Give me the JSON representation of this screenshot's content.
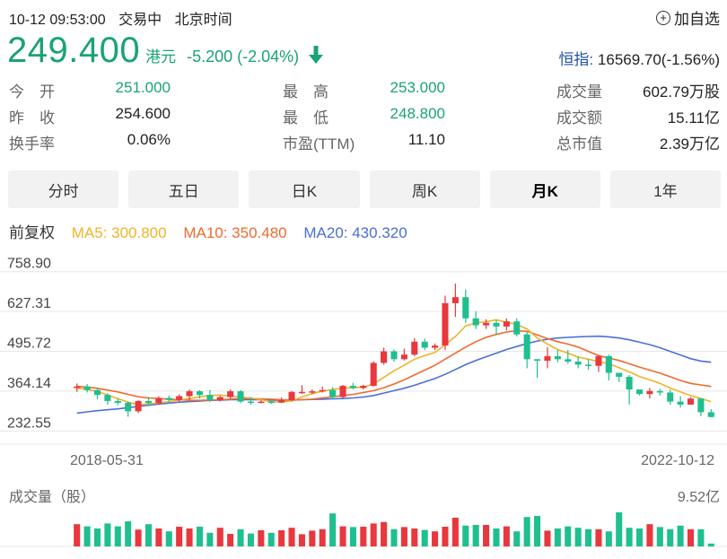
{
  "header": {
    "datetime": "10-12 09:53:00",
    "status": "交易中",
    "timezone": "北京时间",
    "add_label": "加自选"
  },
  "quote": {
    "price": "249.400",
    "currency": "港元",
    "change": "-5.200 (-2.04%)",
    "index_label": "恒指:",
    "index_value": "16569.70(-1.56%)"
  },
  "stats": {
    "open_label": "今　开",
    "open": "251.000",
    "prev_label": "昨　收",
    "prev": "254.600",
    "turnover_rate_label": "换手率",
    "turnover_rate": "0.06%",
    "high_label": "最　高",
    "high": "253.000",
    "low_label": "最　低",
    "low": "248.800",
    "pe_label": "市盈(TTM)",
    "pe": "11.10",
    "volume_label": "成交量",
    "volume": "602.79万股",
    "amount_label": "成交额",
    "amount": "15.11亿",
    "mcap_label": "总市值",
    "mcap": "2.39万亿"
  },
  "tabs": [
    "分时",
    "五日",
    "日K",
    "周K",
    "月K",
    "1年"
  ],
  "active_tab": 4,
  "ma": {
    "adjust_label": "前复权",
    "ma5": "MA5: 300.800",
    "ma10": "MA10: 350.480",
    "ma20": "MA20: 430.320"
  },
  "colors": {
    "up": "#e8383d",
    "down": "#1fbf8f",
    "ma5": "#f0b32a",
    "ma10": "#ef6a2f",
    "ma20": "#4b6fd6",
    "accent_green": "#1aa374"
  },
  "chart_data": {
    "type": "candlestick",
    "y_ticks": [
      "758.90",
      "627.31",
      "495.72",
      "364.14",
      "232.55"
    ],
    "ylim": [
      195,
      770
    ],
    "x_start_label": "2018-05-31",
    "x_end_label": "2022-10-12",
    "candles": [
      [
        345,
        350,
        332,
        360
      ],
      [
        350,
        338,
        330,
        358
      ],
      [
        338,
        322,
        308,
        343
      ],
      [
        322,
        302,
        290,
        328
      ],
      [
        302,
        296,
        288,
        310
      ],
      [
        296,
        268,
        250,
        300
      ],
      [
        268,
        302,
        262,
        305
      ],
      [
        302,
        295,
        285,
        315
      ],
      [
        295,
        312,
        290,
        318
      ],
      [
        312,
        305,
        300,
        320
      ],
      [
        305,
        318,
        300,
        324
      ],
      [
        318,
        334,
        305,
        340
      ],
      [
        334,
        322,
        310,
        338
      ],
      [
        322,
        305,
        298,
        338
      ],
      [
        305,
        315,
        300,
        320
      ],
      [
        315,
        334,
        310,
        340
      ],
      [
        334,
        300,
        295,
        338
      ],
      [
        300,
        296,
        290,
        315
      ],
      [
        296,
        300,
        294,
        304
      ],
      [
        300,
        297,
        292,
        302
      ],
      [
        297,
        304,
        295,
        314
      ],
      [
        304,
        332,
        300,
        335
      ],
      [
        332,
        332,
        326,
        354
      ],
      [
        332,
        334,
        325,
        340
      ],
      [
        334,
        338,
        330,
        350
      ],
      [
        338,
        315,
        310,
        348
      ],
      [
        315,
        352,
        312,
        355
      ],
      [
        352,
        345,
        340,
        362
      ],
      [
        345,
        352,
        340,
        356
      ],
      [
        352,
        428,
        350,
        433
      ],
      [
        428,
        466,
        422,
        478
      ],
      [
        466,
        440,
        432,
        472
      ],
      [
        440,
        455,
        436,
        475
      ],
      [
        455,
        498,
        450,
        510
      ],
      [
        498,
        478,
        470,
        508
      ],
      [
        478,
        485,
        470,
        492
      ],
      [
        485,
        625,
        470,
        650
      ],
      [
        625,
        645,
        580,
        690
      ],
      [
        645,
        575,
        560,
        670
      ],
      [
        575,
        552,
        540,
        598
      ],
      [
        552,
        560,
        540,
        572
      ],
      [
        560,
        548,
        522,
        570
      ],
      [
        548,
        565,
        535,
        575
      ],
      [
        565,
        522,
        515,
        575
      ],
      [
        522,
        440,
        410,
        530
      ],
      [
        440,
        435,
        378,
        440
      ],
      [
        435,
        450,
        410,
        480
      ],
      [
        450,
        440,
        430,
        470
      ],
      [
        440,
        432,
        425,
        470
      ],
      [
        432,
        422,
        410,
        450
      ],
      [
        422,
        418,
        405,
        440
      ],
      [
        418,
        450,
        398,
        452
      ],
      [
        450,
        395,
        370,
        455
      ],
      [
        395,
        382,
        365,
        390
      ],
      [
        382,
        340,
        290,
        388
      ],
      [
        340,
        325,
        320,
        340
      ],
      [
        325,
        335,
        310,
        345
      ],
      [
        335,
        330,
        320,
        342
      ],
      [
        330,
        300,
        290,
        340
      ],
      [
        300,
        290,
        280,
        318
      ],
      [
        290,
        310,
        290,
        315
      ],
      [
        310,
        265,
        252,
        312
      ],
      [
        265,
        249,
        248,
        275
      ]
    ],
    "ma5": [
      345,
      340,
      334,
      322,
      310,
      298,
      290,
      292,
      296,
      300,
      305,
      310,
      316,
      320,
      322,
      318,
      315,
      312,
      306,
      300,
      298,
      303,
      315,
      326,
      335,
      340,
      344,
      346,
      348,
      358,
      380,
      402,
      420,
      440,
      452,
      462,
      488,
      515,
      550,
      560,
      564,
      570,
      562,
      555,
      540,
      510,
      490,
      472,
      460,
      447,
      440,
      432,
      425,
      412,
      398,
      383,
      372,
      360,
      345,
      332,
      320,
      310,
      300
    ],
    "ma10": [
      350,
      348,
      344,
      338,
      332,
      324,
      316,
      312,
      310,
      308,
      306,
      304,
      304,
      305,
      306,
      308,
      310,
      310,
      309,
      308,
      306,
      305,
      306,
      308,
      312,
      316,
      320,
      324,
      330,
      336,
      346,
      358,
      372,
      388,
      404,
      420,
      440,
      460,
      480,
      498,
      512,
      522,
      530,
      534,
      532,
      520,
      508,
      498,
      490,
      480,
      466,
      452,
      444,
      436,
      425,
      414,
      404,
      394,
      382,
      370,
      360,
      355,
      350
    ],
    "ma20": [
      262,
      266,
      270,
      273,
      276,
      280,
      284,
      288,
      292,
      295,
      298,
      300,
      302,
      304,
      305,
      306,
      306,
      306,
      306,
      305,
      305,
      305,
      306,
      307,
      308,
      309,
      310,
      312,
      315,
      320,
      328,
      336,
      344,
      354,
      365,
      376,
      390,
      406,
      422,
      436,
      448,
      460,
      472,
      482,
      492,
      500,
      506,
      510,
      512,
      514,
      515,
      516,
      514,
      510,
      504,
      496,
      488,
      478,
      466,
      454,
      442,
      434,
      430
    ],
    "volume_label": "成交量（股）",
    "volume_max": "9.52亿",
    "volume": [
      6.2,
      5.6,
      5.0,
      6.4,
      5.6,
      7.0,
      4.7,
      6.2,
      5.0,
      4.2,
      5.5,
      5.0,
      5.5,
      3.8,
      5.2,
      3.5,
      4.8,
      3.6,
      4.5,
      3.8,
      4.5,
      5.2,
      3.4,
      4.4,
      4.8,
      9.2,
      5.6,
      5.4,
      5.5,
      6.4,
      6.8,
      4.8,
      5.4,
      5.0,
      4.6,
      4.2,
      5.5,
      8.0,
      5.8,
      6.0,
      6.0,
      5.0,
      5.6,
      4.2,
      8.2,
      8.5,
      4.4,
      5.0,
      5.6,
      5.2,
      4.8,
      4.8,
      4.2,
      9.5,
      5.2,
      5.0,
      6.2,
      5.4,
      4.8,
      5.8,
      4.8,
      4.8,
      0.8
    ]
  }
}
